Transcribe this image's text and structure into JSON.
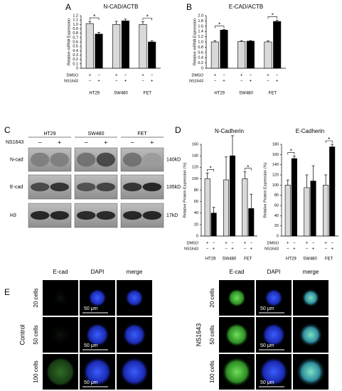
{
  "panel_labels": [
    "A",
    "B",
    "C",
    "D",
    "E"
  ],
  "chart_data": [
    {
      "type": "bar",
      "title": "N-CAD/ACTB",
      "y_label": "Relative mRNA Expression",
      "categories": [
        "HT29",
        "SW480",
        "FET"
      ],
      "series": [
        {
          "name": "DMSO",
          "color": "#d9d9d9",
          "values": [
            1.02,
            1.0,
            1.0
          ],
          "errors": [
            0.05,
            0.07,
            0.06
          ]
        },
        {
          "name": "NS1643",
          "color": "#000000",
          "values": [
            0.78,
            1.08,
            0.6
          ],
          "errors": [
            0.04,
            0.04,
            0.03
          ]
        }
      ],
      "marks": {
        "on": "+",
        "off": "−"
      },
      "significance": [
        {
          "category": "HT29",
          "label": "*"
        },
        {
          "category": "FET",
          "label": "*"
        }
      ],
      "ylim": [
        0,
        1.2
      ],
      "yticks": [
        0,
        0.1,
        0.2,
        0.3,
        0.4,
        0.5,
        0.6,
        0.7,
        0.8,
        0.9,
        {
          "value": 1,
          "label": "1.0"
        },
        1.1,
        1.2
      ]
    },
    {
      "type": "bar",
      "title": "E-CAD/ACTB",
      "y_label": "Relative mRNA Expression",
      "categories": [
        "HT29",
        "SW480",
        "FET"
      ],
      "series": [
        {
          "name": "DMSO",
          "color": "#d9d9d9",
          "values": [
            1.0,
            1.02,
            1.0
          ],
          "errors": [
            0.05,
            0.03,
            0.04
          ]
        },
        {
          "name": "NS1643",
          "color": "#000000",
          "values": [
            1.45,
            1.03,
            1.78
          ],
          "errors": [
            0.02,
            0.02,
            0.05
          ]
        }
      ],
      "marks": {
        "on": "+",
        "off": "−"
      },
      "significance": [
        {
          "category": "HT29",
          "label": "*"
        },
        {
          "category": "FET",
          "label": "*"
        }
      ],
      "ylim": [
        0,
        2
      ],
      "yticks": [
        0,
        0.2,
        0.4,
        0.6,
        0.8,
        {
          "value": 1,
          "label": "1.0"
        },
        1.2,
        1.4,
        1.6,
        1.8,
        {
          "value": 2,
          "label": "2.0"
        }
      ]
    },
    {
      "type": "bar",
      "title": "N-Cadherin",
      "y_label": "Relative Protein Expression (%)",
      "categories": [
        "HT29",
        "SW480",
        "FET"
      ],
      "series": [
        {
          "name": "DMSO",
          "color": "#d9d9d9",
          "values": [
            100,
            98,
            100
          ],
          "errors": [
            10,
            40,
            12
          ]
        },
        {
          "name": "NS1643",
          "color": "#000000",
          "values": [
            40,
            140,
            48
          ],
          "errors": [
            10,
            35,
            25
          ]
        }
      ],
      "marks": {
        "on": "+",
        "off": "−"
      },
      "significance": [
        {
          "category": "HT29",
          "label": "*"
        },
        {
          "category": "FET",
          "label": "*"
        }
      ],
      "ylim": [
        0,
        160
      ],
      "yticks": [
        0,
        20,
        40,
        60,
        80,
        100,
        120,
        140,
        160
      ]
    },
    {
      "type": "bar",
      "title": "E-Cadherin",
      "y_label": "Relative Protein Expression (%)",
      "categories": [
        "HT29",
        "SW480",
        "FET"
      ],
      "series": [
        {
          "name": "DMSO",
          "color": "#d9d9d9",
          "values": [
            100,
            95,
            100
          ],
          "errors": [
            10,
            25,
            20
          ]
        },
        {
          "name": "NS1643",
          "color": "#000000",
          "values": [
            152,
            108,
            175
          ],
          "errors": [
            5,
            30,
            5
          ]
        }
      ],
      "marks": {
        "on": "+",
        "off": "−"
      },
      "significance": [
        {
          "category": "HT29",
          "label": "*"
        },
        {
          "category": "FET",
          "label": "*"
        }
      ],
      "ylim": [
        0,
        180
      ],
      "yticks": [
        0,
        20,
        40,
        60,
        80,
        100,
        120,
        140,
        160,
        180
      ]
    }
  ],
  "panel_c": {
    "treatment": "NS1643",
    "cell_lines": [
      "HT29",
      "SW480",
      "FET"
    ],
    "signs": [
      "−",
      "+"
    ],
    "rows": [
      {
        "protein": "N-cad",
        "size": "140kD"
      },
      {
        "protein": "E-cad",
        "size": "135kD"
      },
      {
        "protein": "H3",
        "size": "17kD"
      }
    ]
  },
  "panel_e": {
    "columns": [
      "E-cad",
      "DAPI",
      "merge"
    ],
    "rows": [
      "20 cells",
      "50 cells",
      "100 cells"
    ],
    "groups": [
      "Control",
      "NS1643"
    ],
    "scale_bar": "50 μm"
  }
}
